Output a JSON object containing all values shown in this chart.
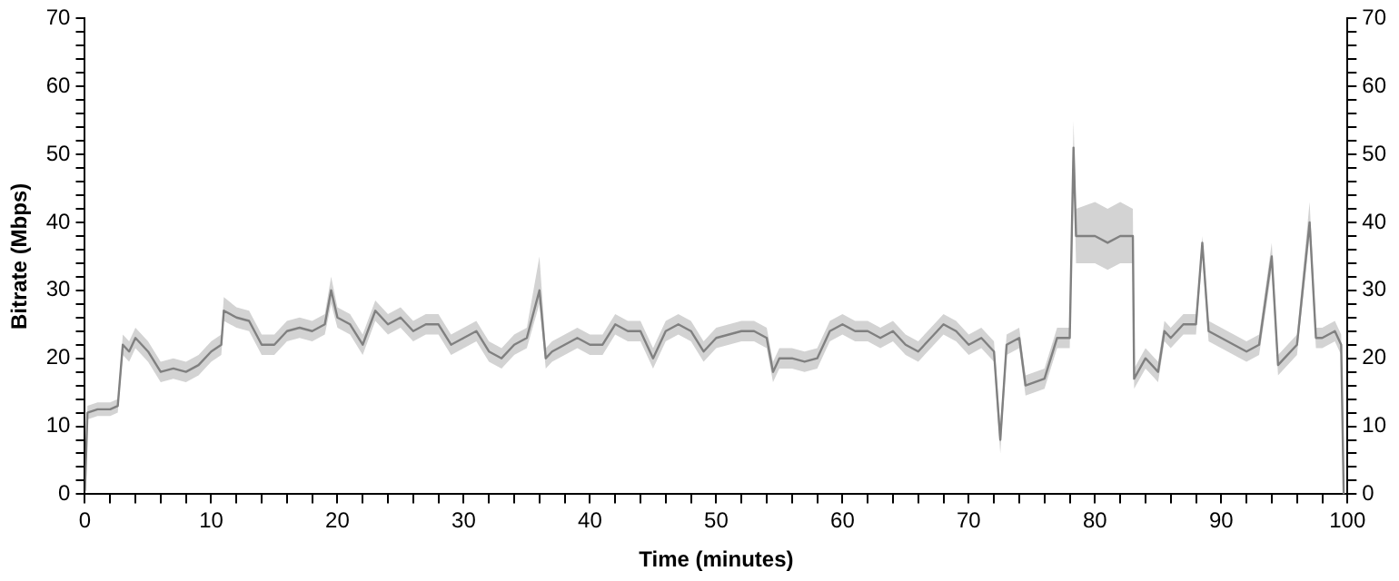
{
  "chart_data": {
    "type": "line",
    "xlabel": "Time (minutes)",
    "ylabel": "Bitrate (Mbps)",
    "x": [
      0,
      0.2,
      1,
      2,
      2.6,
      3,
      3.5,
      4,
      5,
      6,
      7,
      8,
      9,
      10,
      10.8,
      11,
      12,
      13,
      14,
      15,
      16,
      17,
      18,
      19,
      19.5,
      20,
      21,
      22,
      23,
      24,
      25,
      26,
      27,
      28,
      29,
      30,
      31,
      32,
      33,
      34,
      35,
      36,
      36.5,
      37,
      38,
      39,
      40,
      41,
      42,
      43,
      44,
      45,
      46,
      47,
      48,
      49,
      50,
      51,
      52,
      53,
      54,
      54.5,
      55,
      56,
      57,
      58,
      59,
      60,
      61,
      62,
      63,
      64,
      65,
      66,
      67,
      68,
      69,
      70,
      71,
      72,
      72.5,
      73,
      74,
      74.5,
      76,
      77,
      78,
      78.3,
      78.5,
      80,
      81,
      82,
      83,
      83.1,
      84,
      85,
      85.5,
      86,
      87,
      88,
      88.5,
      89,
      90,
      91,
      92,
      93,
      94,
      94.5,
      95,
      96,
      97,
      97.5,
      98,
      99,
      99.5,
      99.7
    ],
    "series": [
      {
        "color": "#808080",
        "values": [
          0.5,
          12,
          12.5,
          12.5,
          13,
          22,
          21,
          23,
          21,
          18,
          18.5,
          18,
          19,
          21,
          22,
          27,
          26,
          25.5,
          22,
          22,
          24,
          24.5,
          24,
          25,
          30,
          26,
          25,
          22,
          27,
          25,
          26,
          24,
          25,
          25,
          22,
          23,
          24,
          21,
          20,
          22,
          23,
          30,
          20,
          21,
          22,
          23,
          22,
          22,
          25,
          24,
          24,
          20,
          24,
          25,
          24,
          21,
          23,
          23.5,
          24,
          24,
          23,
          18,
          20,
          20,
          19.5,
          20,
          24,
          25,
          24,
          24,
          23,
          24,
          22,
          21,
          23,
          25,
          24,
          22,
          23,
          21,
          8,
          22,
          23,
          16,
          17,
          23,
          23,
          51,
          38,
          38,
          37,
          38,
          38,
          17,
          20,
          18,
          24,
          23,
          25,
          25,
          37,
          24,
          23,
          22,
          21,
          22,
          35,
          19,
          20,
          22,
          40,
          23,
          23,
          24,
          22,
          0
        ],
        "lower": [
          0.5,
          11,
          11.5,
          11.5,
          12,
          20.5,
          19.5,
          21.5,
          19.5,
          16.5,
          17,
          16.5,
          17.5,
          19.5,
          20.5,
          25.5,
          24.5,
          24,
          20.5,
          20.5,
          22.5,
          23,
          22.5,
          23.5,
          28,
          24.5,
          23.5,
          20.5,
          25.5,
          23.5,
          24.5,
          22.5,
          23.5,
          23.5,
          20.5,
          21.5,
          22.5,
          19.5,
          18.5,
          20.5,
          21.5,
          28,
          18.5,
          19.5,
          20.5,
          21.5,
          20.5,
          20.5,
          23.5,
          22.5,
          22.5,
          18.5,
          22.5,
          23.5,
          22.5,
          19.5,
          21.5,
          22,
          22.5,
          22.5,
          21.5,
          16.5,
          18.5,
          18.5,
          18,
          18.5,
          22.5,
          23.5,
          22.5,
          22.5,
          21.5,
          22.5,
          20.5,
          19.5,
          21.5,
          23.5,
          22.5,
          20.5,
          21.5,
          19.5,
          6,
          20.5,
          21.5,
          14.5,
          15.5,
          21.5,
          21.5,
          49,
          34,
          34,
          33,
          34,
          34,
          15.5,
          18.5,
          16.5,
          22.5,
          21.5,
          23.5,
          23.5,
          35,
          22.5,
          21.5,
          20.5,
          19.5,
          20.5,
          33,
          17.5,
          18.5,
          20.5,
          38,
          21.5,
          21.5,
          22.5,
          20.5,
          0
        ],
        "upper": [
          0.5,
          13,
          13.5,
          13.5,
          14,
          23.5,
          22.5,
          24.5,
          22.5,
          19.5,
          20,
          19.5,
          20.5,
          22.5,
          23.5,
          29,
          27.5,
          27,
          23.5,
          23.5,
          25.5,
          26,
          25.5,
          26.5,
          32,
          27.5,
          26.5,
          23.5,
          28.5,
          26.5,
          27.5,
          25.5,
          26.5,
          26.5,
          23.5,
          24.5,
          25.5,
          22.5,
          21.5,
          23.5,
          24.5,
          35,
          21.5,
          22.5,
          23.5,
          24.5,
          23.5,
          23.5,
          26.5,
          25.5,
          25.5,
          21.5,
          25.5,
          26.5,
          25.5,
          22.5,
          24.5,
          25,
          25.5,
          25.5,
          24.5,
          19.5,
          21.5,
          21.5,
          21,
          21.5,
          25.5,
          26.5,
          25.5,
          25.5,
          24.5,
          25.5,
          23.5,
          22.5,
          24.5,
          26.5,
          25.5,
          23.5,
          24.5,
          22.5,
          10,
          23.5,
          24.5,
          17.5,
          18.5,
          24.5,
          24.5,
          55,
          42,
          43,
          42,
          43,
          42,
          18.5,
          21.5,
          19.5,
          25.5,
          24.5,
          26.5,
          26.5,
          38,
          25.5,
          24.5,
          23.5,
          22.5,
          23.5,
          37,
          20.5,
          21.5,
          23.5,
          43,
          24.5,
          24.5,
          25.5,
          23.5,
          0
        ]
      }
    ],
    "xlim": [
      0,
      100
    ],
    "xticks": [
      0,
      {
        "value": 2,
        "label": null
      },
      {
        "value": 4,
        "label": null
      },
      {
        "value": 6,
        "label": null
      },
      {
        "value": 8,
        "label": null
      },
      10,
      {
        "value": 12,
        "label": null
      },
      {
        "value": 14,
        "label": null
      },
      {
        "value": 16,
        "label": null
      },
      {
        "value": 18,
        "label": null
      },
      20,
      {
        "value": 22,
        "label": null
      },
      {
        "value": 24,
        "label": null
      },
      {
        "value": 26,
        "label": null
      },
      {
        "value": 28,
        "label": null
      },
      30,
      {
        "value": 32,
        "label": null
      },
      {
        "value": 34,
        "label": null
      },
      {
        "value": 36,
        "label": null
      },
      {
        "value": 38,
        "label": null
      },
      40,
      {
        "value": 42,
        "label": null
      },
      {
        "value": 44,
        "label": null
      },
      {
        "value": 46,
        "label": null
      },
      {
        "value": 48,
        "label": null
      },
      50,
      {
        "value": 52,
        "label": null
      },
      {
        "value": 54,
        "label": null
      },
      {
        "value": 56,
        "label": null
      },
      {
        "value": 58,
        "label": null
      },
      60,
      {
        "value": 62,
        "label": null
      },
      {
        "value": 64,
        "label": null
      },
      {
        "value": 66,
        "label": null
      },
      {
        "value": 68,
        "label": null
      },
      70,
      {
        "value": 72,
        "label": null
      },
      {
        "value": 74,
        "label": null
      },
      {
        "value": 76,
        "label": null
      },
      {
        "value": 78,
        "label": null
      },
      80,
      {
        "value": 82,
        "label": null
      },
      {
        "value": 84,
        "label": null
      },
      {
        "value": 86,
        "label": null
      },
      {
        "value": 88,
        "label": null
      },
      90,
      {
        "value": 92,
        "label": null
      },
      {
        "value": 94,
        "label": null
      },
      {
        "value": 96,
        "label": null
      },
      {
        "value": 98,
        "label": null
      },
      100
    ],
    "ylim": [
      0,
      70
    ],
    "yticks": [
      0,
      {
        "value": 2,
        "label": null
      },
      {
        "value": 4,
        "label": null
      },
      {
        "value": 6,
        "label": null
      },
      {
        "value": 8,
        "label": null
      },
      10,
      {
        "value": 12,
        "label": null
      },
      {
        "value": 14,
        "label": null
      },
      {
        "value": 16,
        "label": null
      },
      {
        "value": 18,
        "label": null
      },
      20,
      {
        "value": 22,
        "label": null
      },
      {
        "value": 24,
        "label": null
      },
      {
        "value": 26,
        "label": null
      },
      {
        "value": 28,
        "label": null
      },
      30,
      {
        "value": 32,
        "label": null
      },
      {
        "value": 34,
        "label": null
      },
      {
        "value": 36,
        "label": null
      },
      {
        "value": 38,
        "label": null
      },
      40,
      {
        "value": 42,
        "label": null
      },
      {
        "value": 44,
        "label": null
      },
      {
        "value": 46,
        "label": null
      },
      {
        "value": 48,
        "label": null
      },
      50,
      {
        "value": 52,
        "label": null
      },
      {
        "value": 54,
        "label": null
      },
      {
        "value": 56,
        "label": null
      },
      {
        "value": 58,
        "label": null
      },
      60,
      {
        "value": 62,
        "label": null
      },
      {
        "value": 64,
        "label": null
      },
      {
        "value": 66,
        "label": null
      },
      {
        "value": 68,
        "label": null
      },
      70
    ],
    "y2lim": [
      0,
      70
    ],
    "y2ticks": [
      0,
      {
        "value": 2,
        "label": null
      },
      {
        "value": 4,
        "label": null
      },
      {
        "value": 6,
        "label": null
      },
      {
        "value": 8,
        "label": null
      },
      10,
      {
        "value": 12,
        "label": null
      },
      {
        "value": 14,
        "label": null
      },
      {
        "value": 16,
        "label": null
      },
      {
        "value": 18,
        "label": null
      },
      20,
      {
        "value": 22,
        "label": null
      },
      {
        "value": 24,
        "label": null
      },
      {
        "value": 26,
        "label": null
      },
      {
        "value": 28,
        "label": null
      },
      30,
      {
        "value": 32,
        "label": null
      },
      {
        "value": 34,
        "label": null
      },
      {
        "value": 36,
        "label": null
      },
      {
        "value": 38,
        "label": null
      },
      40,
      {
        "value": 42,
        "label": null
      },
      {
        "value": 44,
        "label": null
      },
      {
        "value": 46,
        "label": null
      },
      {
        "value": 48,
        "label": null
      },
      50,
      {
        "value": 52,
        "label": null
      },
      {
        "value": 54,
        "label": null
      },
      {
        "value": 56,
        "label": null
      },
      {
        "value": 58,
        "label": null
      },
      60,
      {
        "value": 62,
        "label": null
      },
      {
        "value": 64,
        "label": null
      },
      {
        "value": 66,
        "label": null
      },
      {
        "value": 68,
        "label": null
      },
      70
    ],
    "grid": false,
    "legend": false,
    "marker": "none",
    "line_style": "solid"
  }
}
